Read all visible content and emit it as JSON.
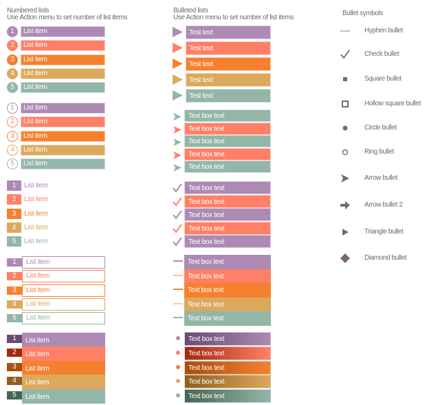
{
  "colors": [
    "#ad8ab4",
    "#ff8066",
    "#f5812f",
    "#dca95c",
    "#93b6a8"
  ],
  "dark_colors": [
    "#684b70",
    "#a32810",
    "#a84e10",
    "#8c6020",
    "#466655"
  ],
  "numbered": {
    "title": "Numbered lists",
    "subtitle": "Use Action menu to set number of list items",
    "item_label": "List item",
    "numbers": [
      "1",
      "2",
      "3",
      "4",
      "5"
    ]
  },
  "bulleted": {
    "title": "Bulleted lists",
    "subtitle": "Use Action menu to set number of list items",
    "triangle_label": "Test text",
    "box_label": "Text box text"
  },
  "symbols": {
    "title": "Bullet symbols",
    "items": [
      {
        "icon": "hyphen-icon",
        "label": "Hyphen bullet"
      },
      {
        "icon": "check-icon",
        "label": "Check bullet"
      },
      {
        "icon": "square-icon",
        "label": "Square bullet"
      },
      {
        "icon": "hollow-square-icon",
        "label": "Hollow square bullet"
      },
      {
        "icon": "circle-icon",
        "label": "Circle bullet"
      },
      {
        "icon": "ring-icon",
        "label": "Ring bullet"
      },
      {
        "icon": "arrow-icon",
        "label": "Arrow bullet"
      },
      {
        "icon": "arrow-2-icon",
        "label": "Arrow bullet 2"
      },
      {
        "icon": "triangle-icon",
        "label": "Triangle bullet"
      },
      {
        "icon": "diamond-icon",
        "label": "Diamond bullet"
      }
    ]
  }
}
